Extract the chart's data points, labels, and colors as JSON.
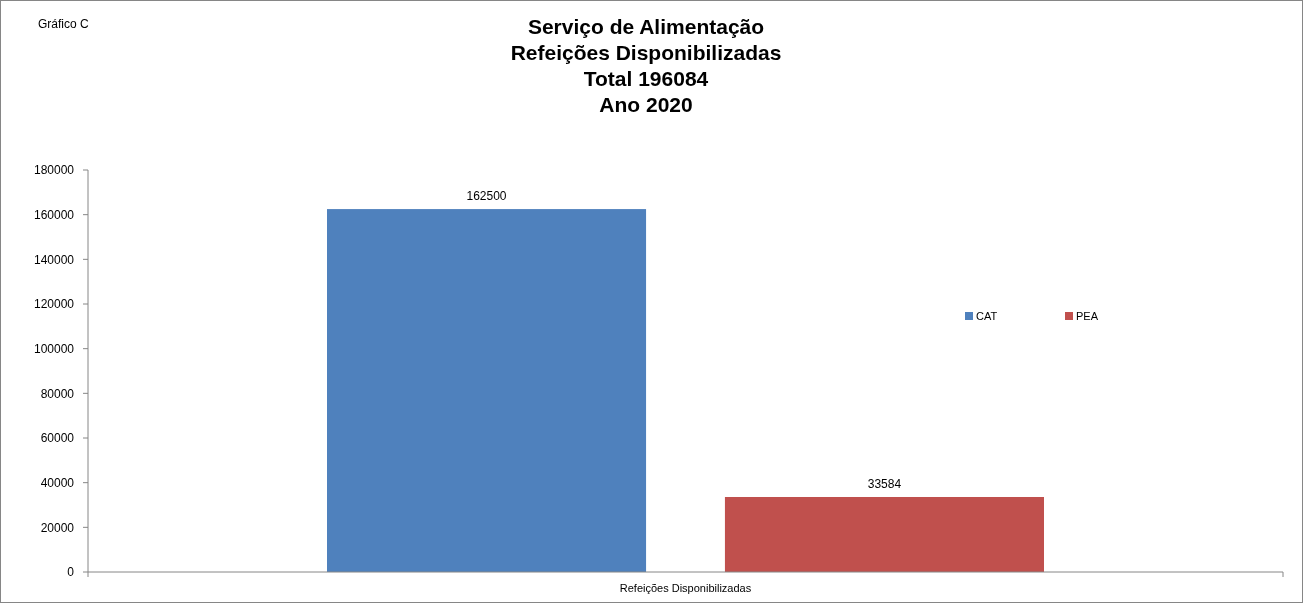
{
  "chart_data": {
    "type": "bar",
    "title": "Serviço de Alimentação\nRefeições Disponibilizadas\nTotal 196084\nAno 2020",
    "annotations": [
      "Gráfico C"
    ],
    "categories": [
      "Refeições Disponibilizadas"
    ],
    "series": [
      {
        "name": "CAT",
        "color": "#4f81bd",
        "values": [
          162500
        ]
      },
      {
        "name": "PEA",
        "color": "#c0504d",
        "values": [
          33584
        ]
      }
    ],
    "ylim": [
      0,
      180000
    ],
    "yticks": [
      0,
      20000,
      40000,
      60000,
      80000,
      100000,
      120000,
      140000,
      160000,
      180000
    ],
    "grid": false,
    "legend": "right",
    "data_labels": true
  }
}
